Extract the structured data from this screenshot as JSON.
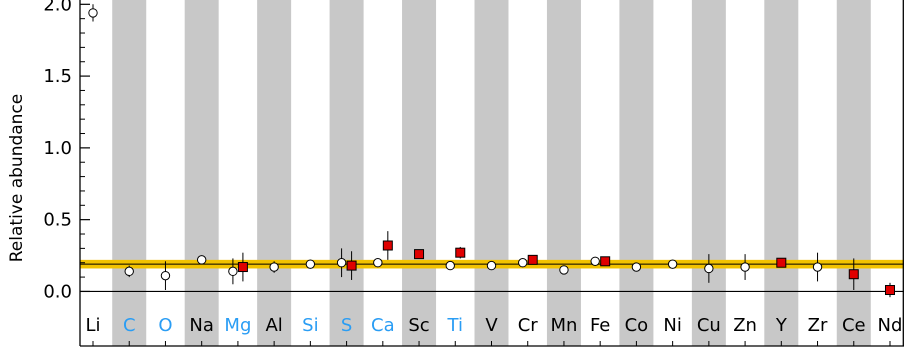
{
  "chart_data": {
    "type": "scatter",
    "title": "",
    "xlabel": "",
    "ylabel": "Relative abundance",
    "ylim": [
      -0.38,
      2.03
    ],
    "y_ticks": [
      "0.0",
      "0.5",
      "1.0",
      "1.5",
      "2.0"
    ],
    "y_tick_values": [
      0.0,
      0.5,
      1.0,
      1.5,
      2.0
    ],
    "reference_line": 0.0,
    "horizontal_band": {
      "center": 0.19,
      "low": 0.16,
      "high": 0.22,
      "color": "#f2c200"
    },
    "grid": false,
    "stripe_color": "#c8c8c8",
    "categories": [
      "Li",
      "C",
      "O",
      "Na",
      "Mg",
      "Al",
      "Si",
      "S",
      "Ca",
      "Sc",
      "Ti",
      "V",
      "Cr",
      "Mn",
      "Fe",
      "Co",
      "Ni",
      "Cu",
      "Zn",
      "Y",
      "Zr",
      "Ce",
      "Nd"
    ],
    "category_colors": [
      "#000000",
      "#2a9df4",
      "#2a9df4",
      "#000000",
      "#2a9df4",
      "#000000",
      "#2a9df4",
      "#2a9df4",
      "#2a9df4",
      "#000000",
      "#2a9df4",
      "#000000",
      "#000000",
      "#000000",
      "#000000",
      "#000000",
      "#000000",
      "#000000",
      "#000000",
      "#000000",
      "#000000",
      "#000000",
      "#000000"
    ],
    "series": [
      {
        "marker": "white-circle",
        "color": "#ffffff",
        "points": [
          {
            "x": "Li",
            "y": 1.94,
            "err": 0.06
          },
          {
            "x": "C",
            "y": 0.14,
            "err": 0.04
          },
          {
            "x": "O",
            "y": 0.11,
            "err": 0.1
          },
          {
            "x": "Na",
            "y": 0.22,
            "err": 0.02
          },
          {
            "x": "Mg",
            "y": 0.14,
            "err": 0.09
          },
          {
            "x": "Al",
            "y": 0.17,
            "err": 0.04
          },
          {
            "x": "Si",
            "y": 0.19,
            "err": 0.03
          },
          {
            "x": "S",
            "y": 0.2,
            "err": 0.1
          },
          {
            "x": "Ca",
            "y": 0.2,
            "err": 0.02
          },
          {
            "x": "Ti",
            "y": 0.18,
            "err": 0.02
          },
          {
            "x": "V",
            "y": 0.18,
            "err": 0.02
          },
          {
            "x": "Cr",
            "y": 0.2,
            "err": 0.02
          },
          {
            "x": "Mn",
            "y": 0.15,
            "err": 0.03
          },
          {
            "x": "Fe",
            "y": 0.21,
            "err": 0.02
          },
          {
            "x": "Co",
            "y": 0.17,
            "err": 0.02
          },
          {
            "x": "Ni",
            "y": 0.19,
            "err": 0.02
          },
          {
            "x": "Cu",
            "y": 0.16,
            "err": 0.1
          },
          {
            "x": "Zn",
            "y": 0.17,
            "err": 0.09
          },
          {
            "x": "Zr",
            "y": 0.17,
            "err": 0.1
          }
        ]
      },
      {
        "marker": "red-square",
        "color": "#e00000",
        "points": [
          {
            "x": "Mg",
            "y": 0.17,
            "err": 0.1
          },
          {
            "x": "S",
            "y": 0.18,
            "err": 0.1
          },
          {
            "x": "Ca",
            "y": 0.32,
            "err": 0.1
          },
          {
            "x": "Sc",
            "y": 0.26,
            "err": 0.03
          },
          {
            "x": "Ti",
            "y": 0.27,
            "err": 0.04
          },
          {
            "x": "Cr",
            "y": 0.22,
            "err": 0.02
          },
          {
            "x": "Fe",
            "y": 0.21,
            "err": 0.02
          },
          {
            "x": "Y",
            "y": 0.2,
            "err": 0.03
          },
          {
            "x": "Ce",
            "y": 0.12,
            "err": 0.11
          },
          {
            "x": "Nd",
            "y": 0.01,
            "err": 0.05
          }
        ]
      }
    ]
  }
}
